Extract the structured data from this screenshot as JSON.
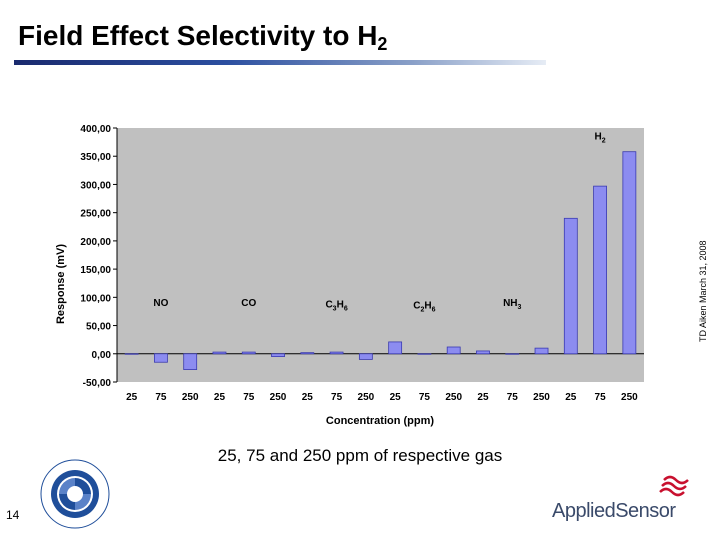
{
  "slide": {
    "title": "Field Effect Selectivity to H",
    "title_sub": "2",
    "side_note": "TD Aiken March 31, 2008",
    "caption": "25, 75 and 250 ppm of respective gas",
    "page_number": "14",
    "logo_left_text": "THE NATIONAL HYDROGEN ASSOCIATION",
    "logo_right_text": "AppliedSensor"
  },
  "colors": {
    "bar_fill": "#8c8cf0",
    "bar_stroke": "#3a3ab0",
    "plot_bg": "#c0c0c0"
  },
  "chart_data": {
    "type": "bar",
    "title": "",
    "xlabel": "Concentration (ppm)",
    "ylabel": "Response (mV)",
    "ylim": [
      -50,
      400
    ],
    "yticks": [
      "-50,00",
      "0,00",
      "50,00",
      "100,00",
      "150,00",
      "200,00",
      "250,00",
      "300,00",
      "350,00",
      "400,00"
    ],
    "categories": [
      "25",
      "75",
      "250",
      "25",
      "75",
      "250",
      "25",
      "75",
      "250",
      "25",
      "75",
      "250",
      "25",
      "75",
      "250",
      "25",
      "75",
      "250"
    ],
    "values": [
      0,
      -15,
      -28,
      3,
      3,
      -5,
      2,
      3,
      -10,
      21,
      0,
      12,
      5,
      0,
      10,
      240,
      297,
      358
    ],
    "grid": false,
    "groups": [
      {
        "name": "NO",
        "sub": "",
        "start": 0
      },
      {
        "name": "CO",
        "sub": "",
        "start": 3
      },
      {
        "name": "C",
        "sub": "3",
        "name2": "H",
        "sub2": "6",
        "start": 6
      },
      {
        "name": "C",
        "sub": "2",
        "name2": "H",
        "sub2": "6",
        "start": 9
      },
      {
        "name": "NH",
        "sub": "3",
        "start": 12
      },
      {
        "name": "H",
        "sub": "2",
        "start": 15
      }
    ]
  }
}
